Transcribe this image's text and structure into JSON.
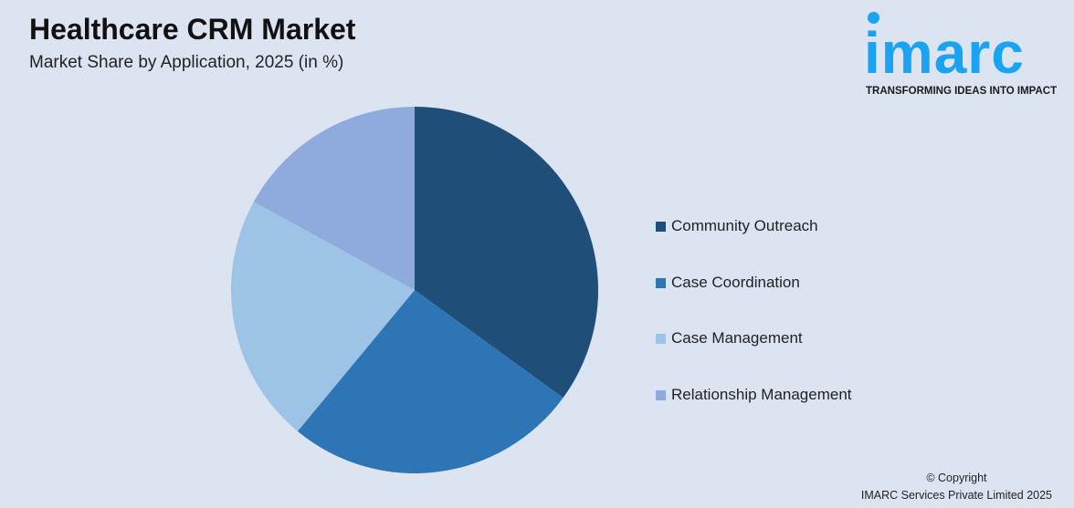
{
  "header": {
    "title": "Healthcare CRM Market",
    "subtitle": "Market Share by Application, 2025 (in %)"
  },
  "logo": {
    "word": "imarc",
    "tagline": "TRANSFORMING IDEAS INTO IMPACT"
  },
  "footer": {
    "copyright": "© Copyright",
    "company": "IMARC Services Private Limited 2025"
  },
  "chart_data": {
    "type": "pie",
    "title": "Healthcare CRM Market",
    "subtitle": "Market Share by Application, 2025 (in %)",
    "categories": [
      "Community Outreach",
      "Case Coordination",
      "Case Management",
      "Relationship Management"
    ],
    "values": [
      35,
      26,
      22,
      17
    ],
    "colors": [
      "#1f4e79",
      "#2e75b6",
      "#9dc3e6",
      "#8faadc"
    ],
    "legend_position": "right"
  }
}
